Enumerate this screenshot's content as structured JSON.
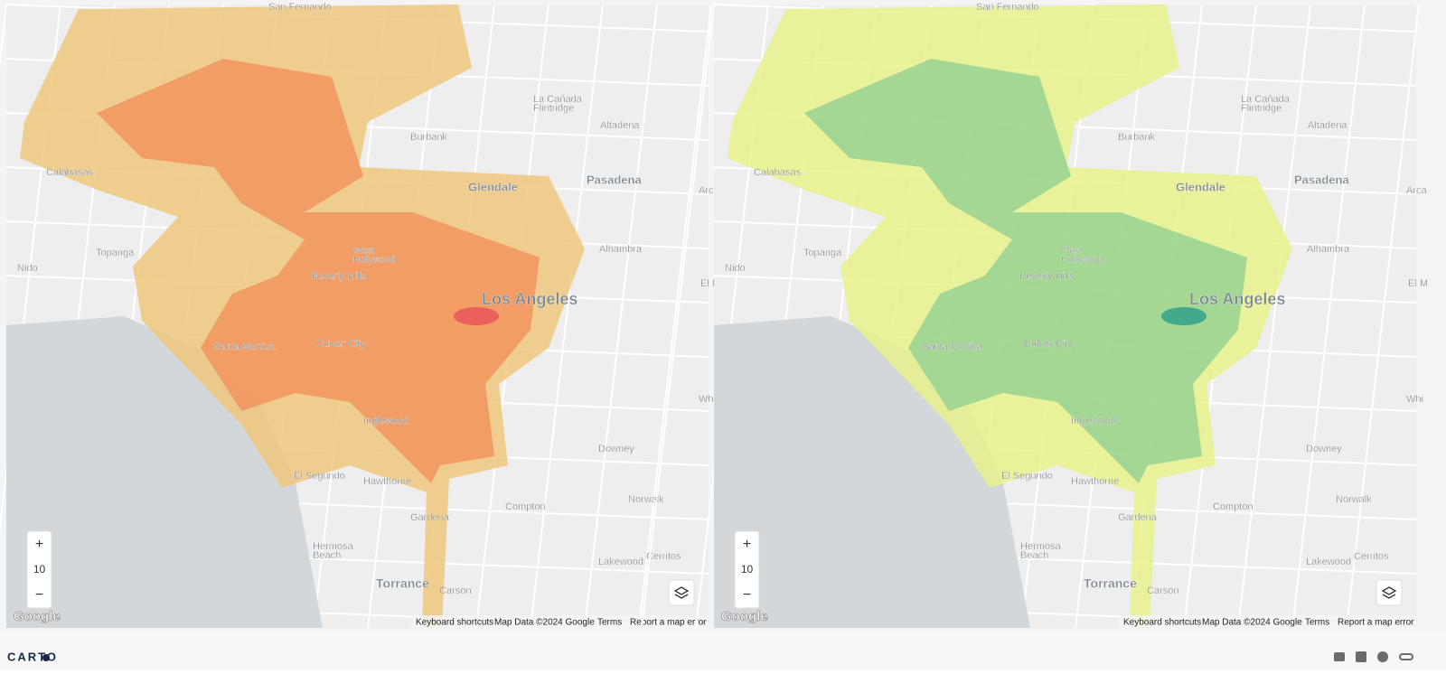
{
  "maps": [
    {
      "zoom": 10,
      "zoom_in": "+",
      "zoom_out": "−"
    },
    {
      "zoom": 10,
      "zoom_in": "+",
      "zoom_out": "−"
    }
  ],
  "places": [
    "San Fernando",
    "La Cañada",
    "Flintridge",
    "Altadena",
    "Burbank",
    "Calabasas",
    "Glendale",
    "Pasadena",
    "Arca",
    "Topanga",
    "Alhambra",
    "West",
    "Hollywood",
    "Beverly Hills",
    "Nido",
    "El M",
    "Los Angeles",
    "Santa Monica",
    "Culver City",
    "Whi",
    "Inglewood",
    "Downey",
    "El Segundo",
    "Hawthorne",
    "Norwalk",
    "Compton",
    "Gardena",
    "Hermosa",
    "Beach",
    "Lakewood",
    "Cerritos",
    "Torrance",
    "Carson"
  ],
  "google_logo": "Google",
  "attribution": [
    "Keyboard shortcuts",
    "Map Data ©2024 Google",
    "Terms",
    "Report a map error"
  ],
  "footer": {
    "brand": "CARTO"
  }
}
